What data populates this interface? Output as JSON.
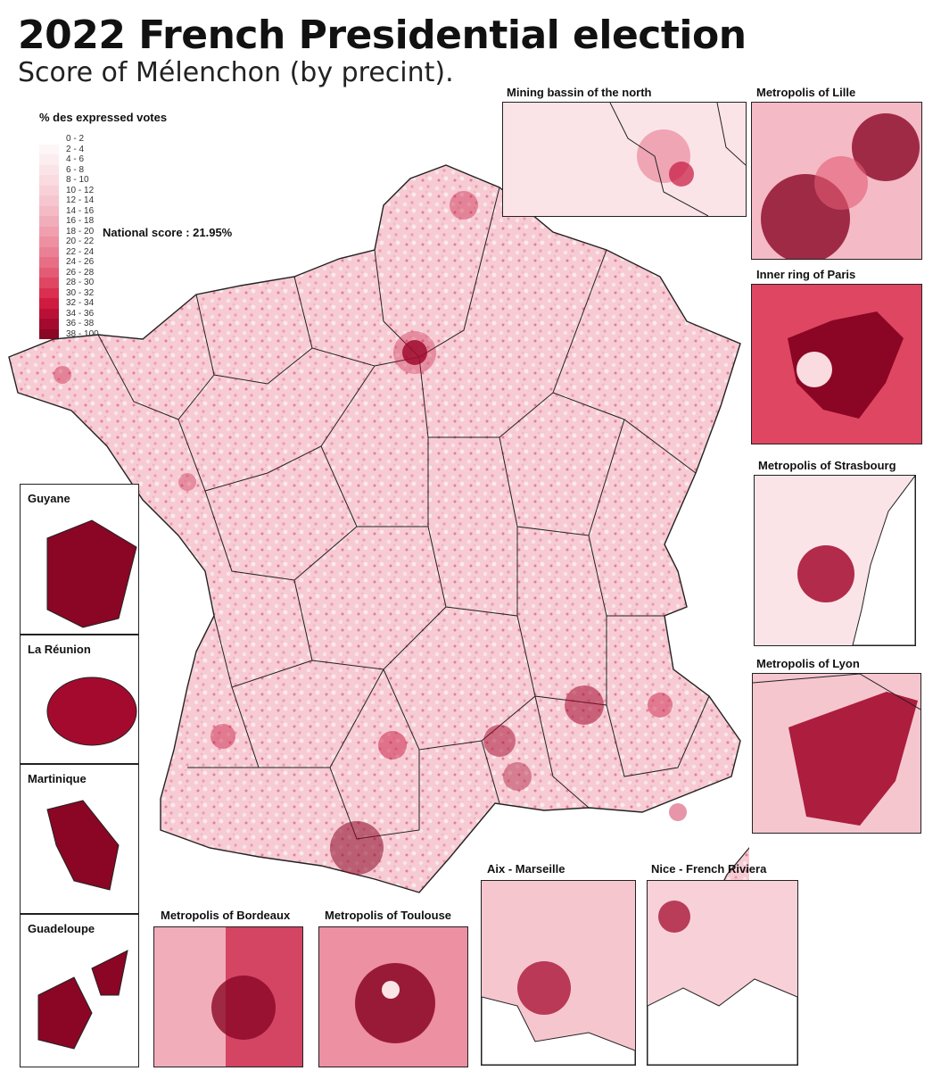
{
  "title": "2022 French Presidential election",
  "subtitle": "Score of Mélenchon (by precint).",
  "legend": {
    "title": "% des expressed votes",
    "classes": [
      {
        "label": "0 - 2",
        "color": "#ffffff"
      },
      {
        "label": "2 - 4",
        "color": "#fdf5f6"
      },
      {
        "label": "4 - 6",
        "color": "#fcedef"
      },
      {
        "label": "6 - 8",
        "color": "#fbe4e7"
      },
      {
        "label": "8 - 10",
        "color": "#f9dbe0"
      },
      {
        "label": "10 - 12",
        "color": "#f8d1d8"
      },
      {
        "label": "12 - 14",
        "color": "#f6c6cf"
      },
      {
        "label": "14 - 16",
        "color": "#f4bac5"
      },
      {
        "label": "16 - 18",
        "color": "#f2adba"
      },
      {
        "label": "18 - 20",
        "color": "#f09fae"
      },
      {
        "label": "20 - 22",
        "color": "#ed90a1"
      },
      {
        "label": "22 - 24",
        "color": "#ea8093"
      },
      {
        "label": "24 - 26",
        "color": "#e76e84"
      },
      {
        "label": "26 - 28",
        "color": "#e35b74"
      },
      {
        "label": "28 - 30",
        "color": "#df4662"
      },
      {
        "label": "30 - 32",
        "color": "#da2f50"
      },
      {
        "label": "32 - 34",
        "color": "#cf1b3f"
      },
      {
        "label": "34 - 36",
        "color": "#bb1036"
      },
      {
        "label": "36 - 38",
        "color": "#a40a2e"
      },
      {
        "label": "38 - 100",
        "color": "#8a0624"
      }
    ]
  },
  "national_score": "National score : 21.95%",
  "insets": {
    "mining_basin": "Mining bassin of the north",
    "lille": "Metropolis of Lille",
    "paris": "Inner ring of Paris",
    "strasbourg": "Metropolis of Strasbourg",
    "lyon": "Metropolis of Lyon",
    "bordeaux": "Metropolis of Bordeaux",
    "toulouse": "Metropolis of Toulouse",
    "marseille": "Aix - Marseille",
    "nice": "Nice - French Riviera"
  },
  "overseas": {
    "guyane": "Guyane",
    "reunion": "La Réunion",
    "martinique": "Martinique",
    "guadeloupe": "Guadeloupe"
  },
  "colors": {
    "base": "#f7d3da",
    "light": "#fbe6ea",
    "mid": "#ec8a9d",
    "dark": "#c8173f",
    "darkest": "#8a0624",
    "border": "#222222"
  }
}
